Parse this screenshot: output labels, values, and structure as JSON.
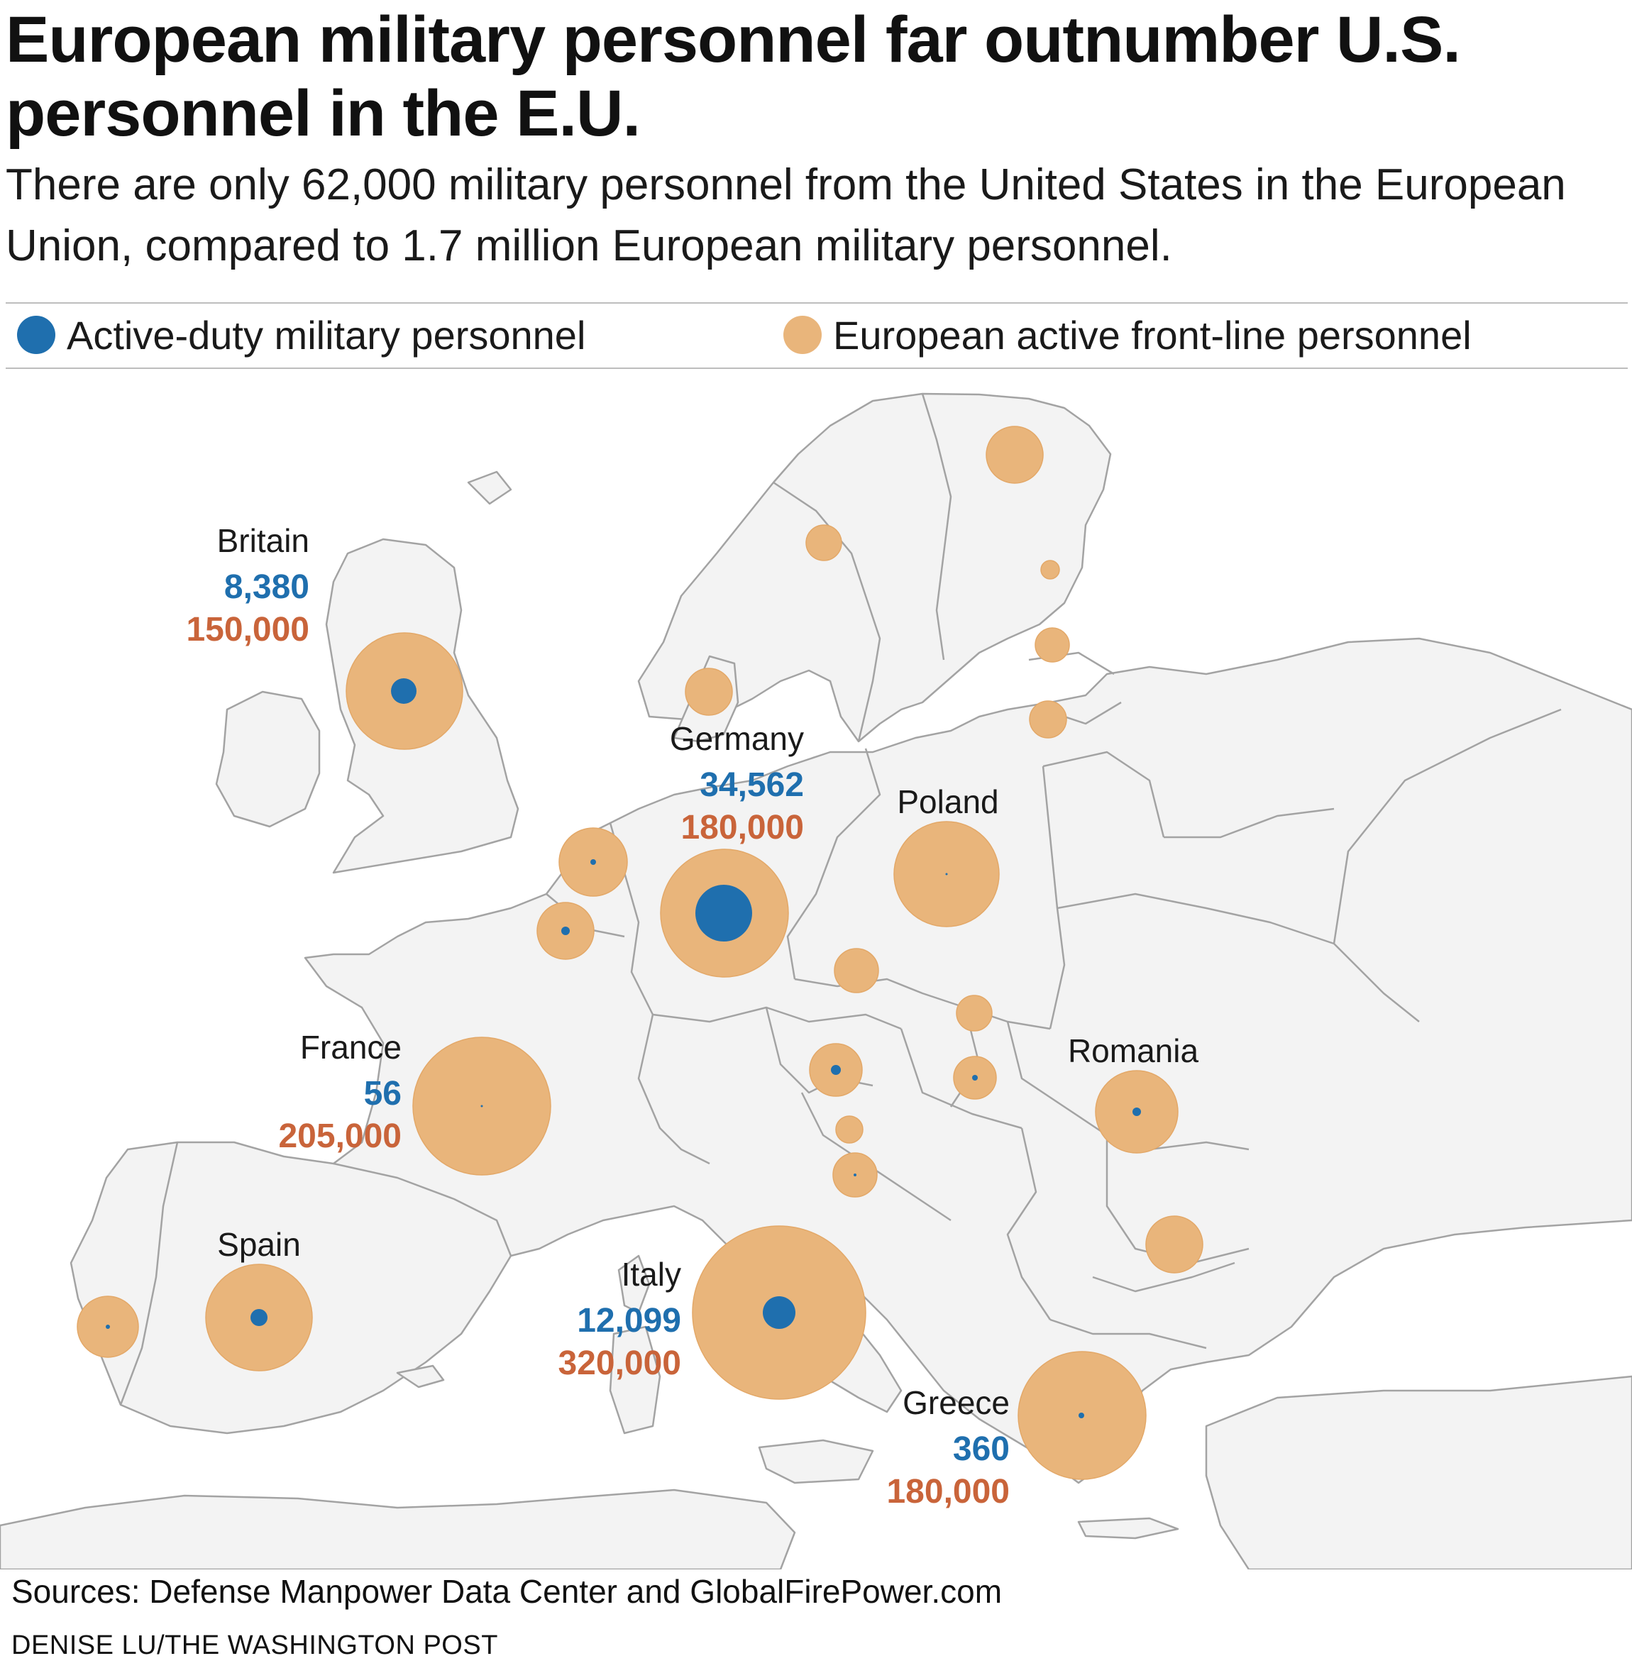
{
  "header": {
    "title": "European military personnel far outnumber U.S. personnel in the E.U.",
    "subtitle": "There are only 62,000 military personnel from the United States in the European Union, compared to 1.7 million European military personnel."
  },
  "legend": {
    "us_label": "Active-duty military personnel",
    "eu_label": "European active front-line personnel",
    "us_color": "#1f6fae",
    "eu_color": "#e9b57b"
  },
  "map": {
    "land_color": "#f3f3f3",
    "border_color": "#a3a3a3",
    "labeled_countries": [
      {
        "name": "Britain",
        "us": "8,380",
        "eu": "150,000"
      },
      {
        "name": "Germany",
        "us": "34,562",
        "eu": "180,000"
      },
      {
        "name": "Poland",
        "us": "",
        "eu": ""
      },
      {
        "name": "France",
        "us": "56",
        "eu": "205,000"
      },
      {
        "name": "Romania",
        "us": "",
        "eu": ""
      },
      {
        "name": "Spain",
        "us": "",
        "eu": ""
      },
      {
        "name": "Italy",
        "us": "12,099",
        "eu": "320,000"
      },
      {
        "name": "Greece",
        "us": "360",
        "eu": "180,000"
      }
    ]
  },
  "footer": {
    "sources": "Sources: Defense Manpower Data Center and GlobalFirePower.com",
    "credit": "DENISE LU/THE WASHINGTON POST"
  }
}
